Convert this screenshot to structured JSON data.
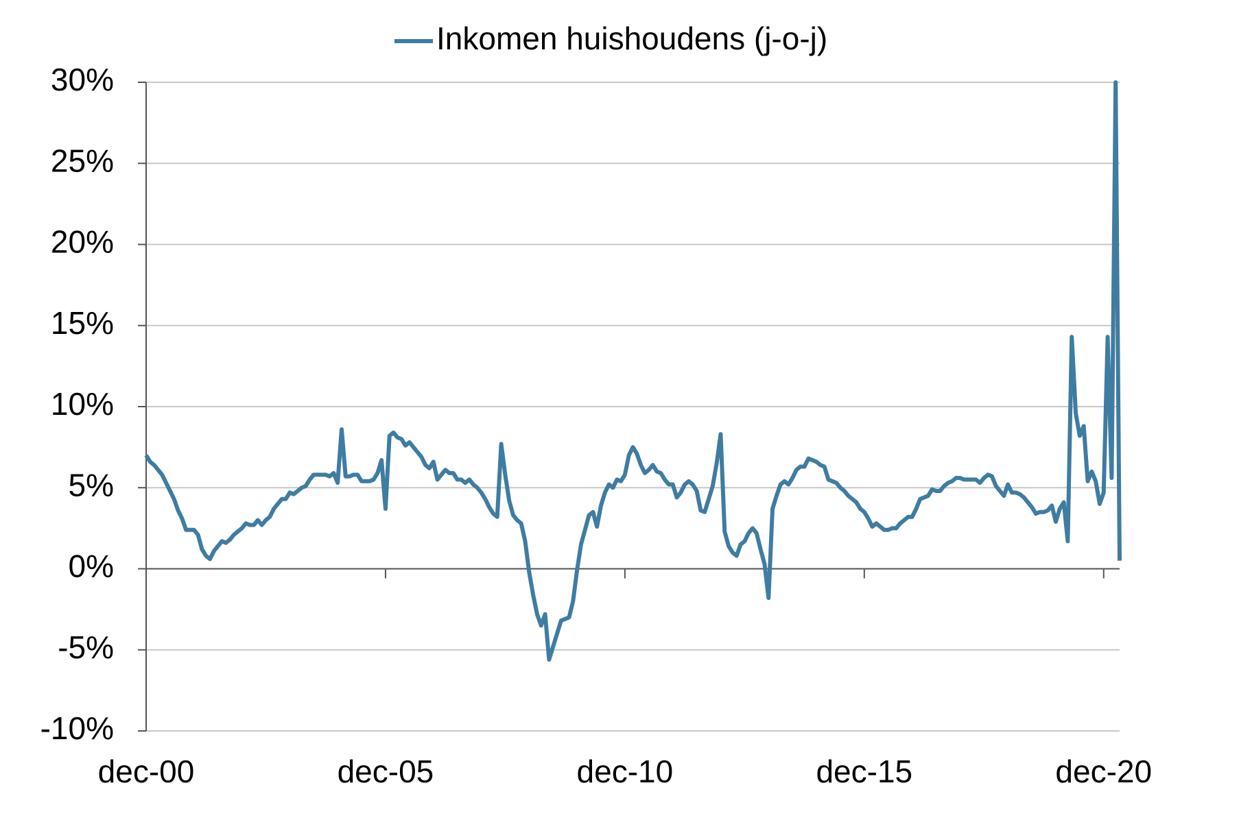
{
  "chart_data": {
    "type": "line",
    "legend_position": "top",
    "grid": true,
    "ylim": [
      -10,
      30
    ],
    "yticks": [
      {
        "value": -10,
        "label": "-10%"
      },
      {
        "value": -5,
        "label": "-5%"
      },
      {
        "value": 0,
        "label": "0%"
      },
      {
        "value": 5,
        "label": "5%"
      },
      {
        "value": 10,
        "label": "10%"
      },
      {
        "value": 15,
        "label": "15%"
      },
      {
        "value": 20,
        "label": "20%"
      },
      {
        "value": 25,
        "label": "25%"
      },
      {
        "value": 30,
        "label": "30%"
      }
    ],
    "categories": [
      "dec-00",
      null,
      null,
      null,
      null,
      null,
      null,
      null,
      null,
      null,
      null,
      null,
      null,
      null,
      null,
      null,
      null,
      null,
      null,
      null,
      null,
      null,
      null,
      null,
      null,
      null,
      null,
      null,
      null,
      null,
      null,
      null,
      null,
      null,
      null,
      null,
      null,
      null,
      null,
      null,
      null,
      null,
      null,
      null,
      null,
      null,
      null,
      null,
      null,
      null,
      null,
      null,
      null,
      null,
      null,
      null,
      null,
      null,
      null,
      null,
      "dec-05",
      null,
      null,
      null,
      null,
      null,
      null,
      null,
      null,
      null,
      null,
      null,
      null,
      null,
      null,
      null,
      null,
      null,
      null,
      null,
      null,
      null,
      null,
      null,
      null,
      null,
      null,
      null,
      null,
      null,
      null,
      null,
      null,
      null,
      null,
      null,
      null,
      null,
      null,
      null,
      null,
      null,
      null,
      null,
      null,
      null,
      null,
      null,
      null,
      null,
      null,
      null,
      null,
      null,
      null,
      null,
      null,
      null,
      null,
      null,
      "dec-10",
      null,
      null,
      null,
      null,
      null,
      null,
      null,
      null,
      null,
      null,
      null,
      null,
      null,
      null,
      null,
      null,
      null,
      null,
      null,
      null,
      null,
      null,
      null,
      null,
      null,
      null,
      null,
      null,
      null,
      null,
      null,
      null,
      null,
      null,
      null,
      null,
      null,
      null,
      null,
      null,
      null,
      null,
      null,
      null,
      null,
      null,
      null,
      null,
      null,
      null,
      null,
      null,
      null,
      null,
      null,
      null,
      null,
      null,
      null,
      "dec-15",
      null,
      null,
      null,
      null,
      null,
      null,
      null,
      null,
      null,
      null,
      null,
      null,
      null,
      null,
      null,
      null,
      null,
      null,
      null,
      null,
      null,
      null,
      null,
      null,
      null,
      null,
      null,
      null,
      null,
      null,
      null,
      null,
      null,
      null,
      null,
      null,
      null,
      null,
      null,
      null,
      null,
      null,
      null,
      null,
      null,
      null,
      null,
      null,
      null,
      null,
      null,
      null,
      null,
      null,
      null,
      null,
      null,
      null,
      null,
      "dec-20",
      null,
      null,
      null,
      null
    ],
    "series": [
      {
        "name": "Inkomen huishoudens (j-o-j)",
        "color": "#3f7ca2",
        "values": [
          7.0,
          6.6,
          6.4,
          6.1,
          5.8,
          5.3,
          4.8,
          4.3,
          3.6,
          3.1,
          2.4,
          2.4,
          2.4,
          2.1,
          1.2,
          0.8,
          0.6,
          1.1,
          1.4,
          1.7,
          1.6,
          1.8,
          2.1,
          2.3,
          2.5,
          2.8,
          2.7,
          2.7,
          3.0,
          2.7,
          3.0,
          3.2,
          3.7,
          4.0,
          4.3,
          4.3,
          4.7,
          4.6,
          4.8,
          5.0,
          5.1,
          5.5,
          5.8,
          5.8,
          5.8,
          5.8,
          5.7,
          5.9,
          5.3,
          8.6,
          5.7,
          5.7,
          5.8,
          5.8,
          5.4,
          5.4,
          5.4,
          5.5,
          5.9,
          6.7,
          3.7,
          8.2,
          8.4,
          8.1,
          8.0,
          7.6,
          7.8,
          7.5,
          7.2,
          6.9,
          6.4,
          6.2,
          6.6,
          5.5,
          5.8,
          6.1,
          5.9,
          5.9,
          5.5,
          5.5,
          5.3,
          5.5,
          5.2,
          5.0,
          4.7,
          4.3,
          3.8,
          3.4,
          3.2,
          7.7,
          5.8,
          4.2,
          3.3,
          3.0,
          2.8,
          1.7,
          -0.2,
          -1.6,
          -2.8,
          -3.5,
          -2.8,
          -5.6,
          -4.8,
          -4.0,
          -3.2,
          -3.1,
          -3.0,
          -2.0,
          -0.1,
          1.5,
          2.4,
          3.3,
          3.5,
          2.6,
          3.9,
          4.7,
          5.2,
          5.0,
          5.5,
          5.4,
          5.8,
          7.0,
          7.5,
          7.1,
          6.4,
          5.9,
          6.1,
          6.4,
          6.0,
          5.9,
          5.5,
          5.2,
          5.2,
          4.4,
          4.7,
          5.2,
          5.4,
          5.2,
          4.8,
          3.6,
          3.5,
          4.3,
          5.1,
          6.5,
          8.3,
          2.3,
          1.4,
          1.0,
          0.8,
          1.5,
          1.7,
          2.2,
          2.5,
          2.2,
          1.2,
          0.3,
          -1.8,
          3.7,
          4.5,
          5.2,
          5.4,
          5.2,
          5.6,
          6.1,
          6.3,
          6.3,
          6.8,
          6.7,
          6.6,
          6.4,
          6.3,
          5.5,
          5.4,
          5.3,
          5.0,
          4.8,
          4.5,
          4.3,
          4.1,
          3.7,
          3.5,
          3.1,
          2.6,
          2.8,
          2.6,
          2.4,
          2.4,
          2.5,
          2.5,
          2.8,
          3.0,
          3.2,
          3.2,
          3.7,
          4.3,
          4.4,
          4.5,
          4.9,
          4.8,
          4.8,
          5.1,
          5.3,
          5.4,
          5.6,
          5.6,
          5.5,
          5.5,
          5.5,
          5.5,
          5.3,
          5.6,
          5.8,
          5.7,
          5.1,
          4.8,
          4.5,
          5.2,
          4.7,
          4.7,
          4.6,
          4.4,
          4.1,
          3.8,
          3.4,
          3.5,
          3.5,
          3.6,
          3.9,
          2.9,
          3.7,
          4.1,
          1.7,
          14.3,
          9.6,
          8.2,
          8.8,
          5.4,
          6.0,
          5.4,
          4.0,
          4.7,
          14.3,
          5.6,
          30.0,
          0.5
        ]
      }
    ]
  }
}
